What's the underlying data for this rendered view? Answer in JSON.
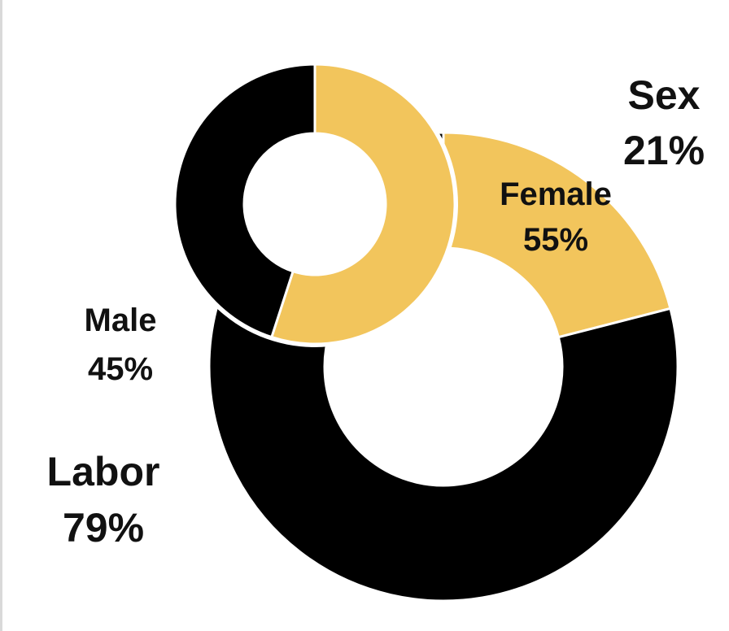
{
  "chart_data": [
    {
      "type": "pie",
      "variant": "donut",
      "slices": [
        {
          "name": "Sex",
          "label": "Sex",
          "value_text": "21%",
          "value": 21,
          "color": "#f2c55c"
        },
        {
          "name": "Labor",
          "label": "Labor",
          "value_text": "79%",
          "value": 79,
          "color": "#000000"
        }
      ]
    },
    {
      "type": "pie",
      "variant": "donut",
      "slices": [
        {
          "name": "Female",
          "label": "Female",
          "value_text": "55%",
          "value": 55,
          "color": "#f2c55c"
        },
        {
          "name": "Male",
          "label": "Male",
          "value_text": "45%",
          "value": 45,
          "color": "#000000"
        }
      ]
    }
  ],
  "colors": {
    "accent": "#f2c55c",
    "dark": "#000000",
    "background": "#ffffff"
  }
}
